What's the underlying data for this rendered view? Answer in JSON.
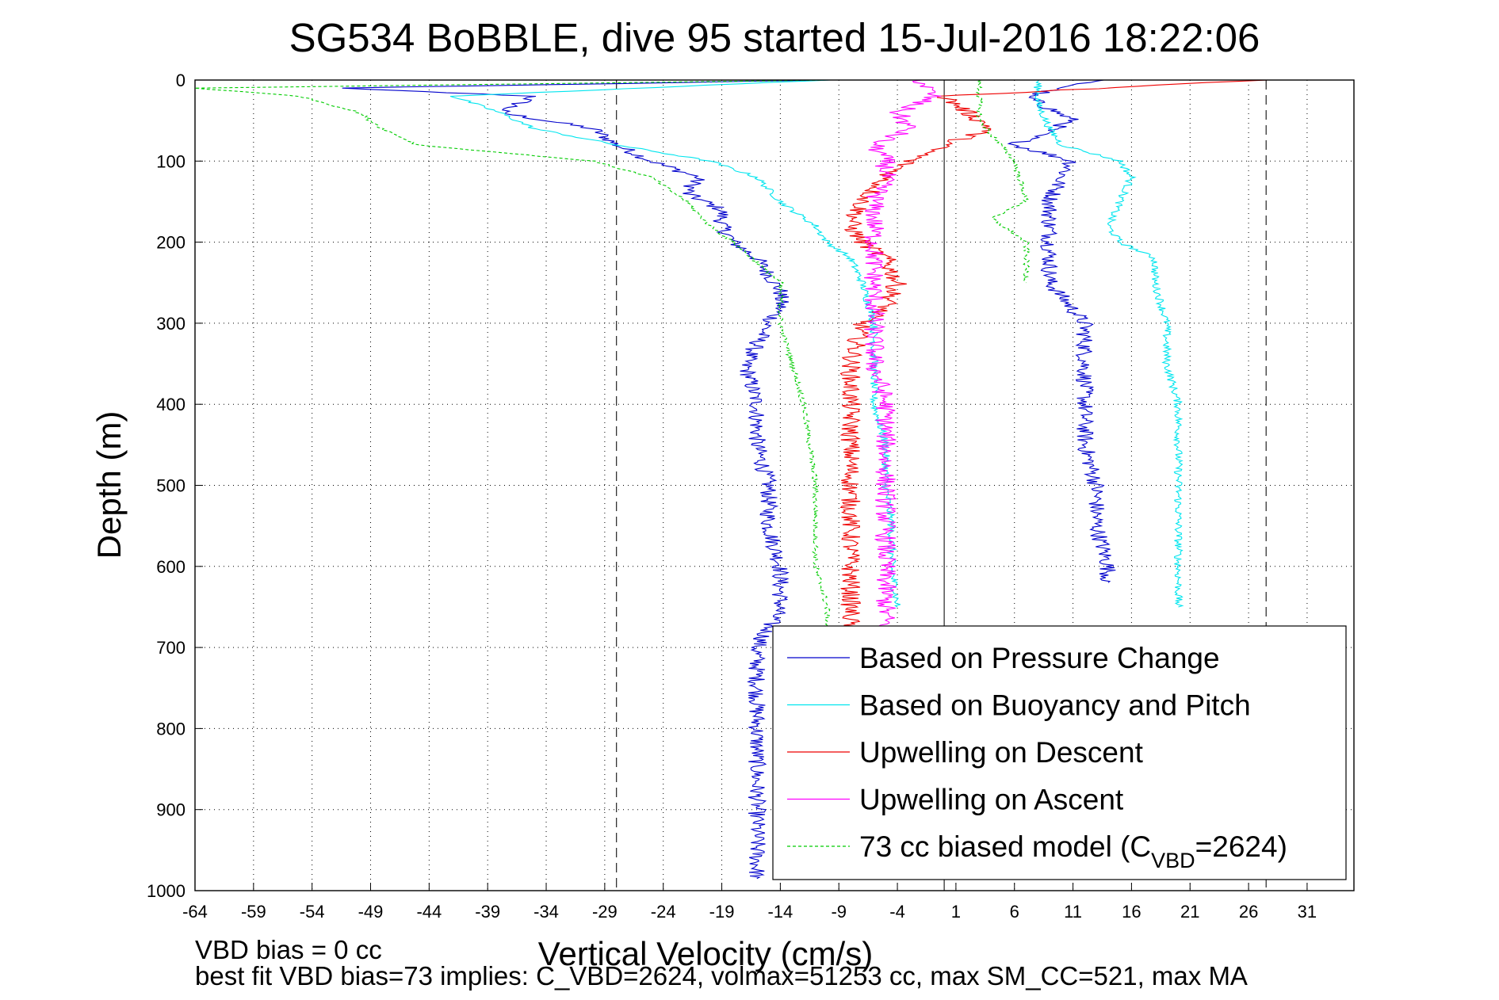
{
  "colors": {
    "pressure": "#0000cc",
    "buoyancy": "#00e5ee",
    "descent": "#ee0000",
    "ascent": "#ff00ff",
    "model": "#00cc00"
  },
  "chart_data": {
    "type": "line",
    "title": "SG534 BoBBLE, dive 95 started 15-Jul-2016 18:22:06",
    "xlabel": "Vertical Velocity (cm/s)",
    "ylabel": "Depth (m)",
    "xlim": [
      -64,
      35
    ],
    "ylim": [
      1000,
      0
    ],
    "y_reversed": true,
    "grid": true,
    "legend_position": "bottom-right",
    "x_ticks": [
      -64,
      -59,
      -54,
      -49,
      -44,
      -39,
      -34,
      -29,
      -24,
      -19,
      -14,
      -9,
      -4,
      1,
      6,
      11,
      16,
      21,
      26,
      31
    ],
    "y_ticks": [
      0,
      100,
      200,
      300,
      400,
      500,
      600,
      700,
      800,
      900,
      1000
    ],
    "reference_lines": {
      "solid_x": 0,
      "dashed_x": [
        -28,
        27.5
      ]
    },
    "series": [
      {
        "key": "pressure",
        "name": "Based on Pressure Change",
        "segments": [
          {
            "phase": "descent",
            "depth": [
              0,
              10,
              20,
              40,
              60,
              80,
              100,
              120,
              140,
              160,
              180,
              200,
              220,
              240,
              260,
              280,
              300,
              350,
              400,
              450,
              500,
              550,
              600,
              650,
              700,
              750,
              800,
              850,
              900,
              950,
              985
            ],
            "velocity": [
              -10,
              -52,
              -35,
              -38,
              -30,
              -28,
              -25,
              -21,
              -22,
              -19,
              -19,
              -18,
              -16,
              -15,
              -14,
              -14,
              -15,
              -17,
              -16,
              -16,
              -15,
              -15,
              -14,
              -14,
              -16,
              -16,
              -16,
              -16,
              -16,
              -16,
              -16
            ]
          },
          {
            "phase": "ascent",
            "depth": [
              0,
              20,
              50,
              80,
              100,
              120,
              150,
              180,
              200,
              250,
              300,
              350,
              400,
              450,
              500,
              550,
              600,
              620
            ],
            "velocity": [
              13,
              7,
              11,
              6,
              11,
              10,
              9,
              9,
              9,
              9,
              12,
              12,
              12,
              12,
              13,
              13,
              14,
              14
            ]
          }
        ]
      },
      {
        "key": "buoyancy",
        "name": "Based on Buoyancy and Pitch",
        "segments": [
          {
            "phase": "descent",
            "depth": [
              0,
              20,
              40,
              60,
              80,
              100,
              120,
              150,
              180,
              200,
              220,
              250,
              300,
              350,
              400,
              450,
              500,
              550,
              600,
              650
            ],
            "velocity": [
              -10,
              -42,
              -38,
              -35,
              -28,
              -20,
              -16,
              -14,
              -11,
              -10,
              -8,
              -7,
              -6,
              -6,
              -6,
              -5,
              -5,
              -4.5,
              -4.5,
              -4
            ]
          },
          {
            "phase": "ascent",
            "depth": [
              0,
              30,
              60,
              80,
              100,
              120,
              150,
              180,
              200,
              220,
              250,
              300,
              350,
              400,
              450,
              500,
              550,
              600,
              650
            ],
            "velocity": [
              8,
              8,
              9,
              10,
              15,
              16,
              15,
              14,
              15,
              18,
              18,
              19,
              19,
              20,
              20,
              20,
              20,
              20,
              20
            ]
          }
        ]
      },
      {
        "key": "descent",
        "name": "Upwelling on Descent",
        "segments": [
          {
            "phase": "descent",
            "depth": [
              0,
              20,
              40,
              60,
              80,
              100,
              120,
              150,
              180,
              200,
              220,
              250,
              280,
              300,
              350,
              400,
              450,
              500,
              550,
              600,
              650,
              680
            ],
            "velocity": [
              27,
              0,
              2,
              4,
              0,
              -3,
              -5,
              -7,
              -8,
              -7,
              -5,
              -4,
              -5,
              -7,
              -8,
              -8,
              -8,
              -8,
              -8,
              -8,
              -8,
              -8
            ]
          }
        ]
      },
      {
        "key": "ascent",
        "name": "Upwelling on Ascent",
        "segments": [
          {
            "phase": "ascent",
            "depth": [
              0,
              20,
              40,
              60,
              80,
              100,
              120,
              150,
              180,
              200,
              220,
              250,
              300,
              350,
              400,
              450,
              500,
              550,
              600,
              650,
              680
            ],
            "velocity": [
              -2,
              -1,
              -4,
              -3,
              -6,
              -5,
              -5,
              -6,
              -6,
              -6,
              -6,
              -6,
              -6,
              -6,
              -5,
              -5,
              -5,
              -5,
              -5,
              -5,
              -5
            ]
          }
        ]
      },
      {
        "key": "model",
        "name": "73 cc biased model (C",
        "name_sub": "VBD",
        "name_tail": "=2624)",
        "dashed": true,
        "segments": [
          {
            "phase": "descent",
            "depth": [
              0,
              10,
              20,
              40,
              60,
              80,
              100,
              120,
              150,
              180,
              200,
              250,
              300,
              400,
              500,
              600,
              650,
              700
            ],
            "velocity": [
              -10,
              -64,
              -55,
              -50,
              -48,
              -45,
              -30,
              -25,
              -22,
              -20,
              -18,
              -14,
              -14,
              -12,
              -11,
              -11,
              -10,
              -10
            ]
          },
          {
            "phase": "ascent",
            "depth": [
              0,
              50,
              100,
              150,
              170,
              200,
              250
            ],
            "velocity": [
              3,
              3,
              6,
              7,
              4,
              7,
              7
            ]
          }
        ]
      }
    ]
  },
  "footer": {
    "vbd_bias": "VBD bias = 0 cc",
    "best_fit": "best fit VBD bias=73 implies: C_VBD=2624, volmax=51253 cc, max SM_CC=521, max MA"
  }
}
